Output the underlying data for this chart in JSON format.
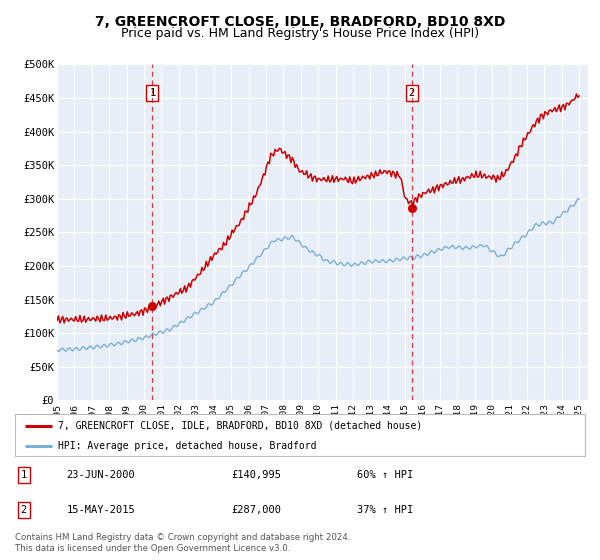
{
  "title": "7, GREENCROFT CLOSE, IDLE, BRADFORD, BD10 8XD",
  "subtitle": "Price paid vs. HM Land Registry's House Price Index (HPI)",
  "ylim": [
    0,
    500000
  ],
  "xlim_start": 1995.0,
  "xlim_end": 2025.5,
  "yticks": [
    0,
    50000,
    100000,
    150000,
    200000,
    250000,
    300000,
    350000,
    400000,
    450000,
    500000
  ],
  "ytick_labels": [
    "£0",
    "£50K",
    "£100K",
    "£150K",
    "£200K",
    "£250K",
    "£300K",
    "£350K",
    "£400K",
    "£450K",
    "£500K"
  ],
  "xtick_years": [
    1995,
    1996,
    1997,
    1998,
    1999,
    2000,
    2001,
    2002,
    2003,
    2004,
    2005,
    2006,
    2007,
    2008,
    2009,
    2010,
    2011,
    2012,
    2013,
    2014,
    2015,
    2016,
    2017,
    2018,
    2019,
    2020,
    2021,
    2022,
    2023,
    2024,
    2025
  ],
  "hpi_color": "#7bafd4",
  "property_color": "#cc0000",
  "background_color": "#e8eef8",
  "grid_color": "#ffffff",
  "marker1_date": 2000.48,
  "marker1_price": 140995,
  "marker1_label": "1",
  "marker2_date": 2015.37,
  "marker2_price": 287000,
  "marker2_label": "2",
  "legend_property": "7, GREENCROFT CLOSE, IDLE, BRADFORD, BD10 8XD (detached house)",
  "legend_hpi": "HPI: Average price, detached house, Bradford",
  "table_row1_num": "1",
  "table_row1_date": "23-JUN-2000",
  "table_row1_price": "£140,995",
  "table_row1_hpi": "60% ↑ HPI",
  "table_row2_num": "2",
  "table_row2_date": "15-MAY-2015",
  "table_row2_price": "£287,000",
  "table_row2_hpi": "37% ↑ HPI",
  "footer": "Contains HM Land Registry data © Crown copyright and database right 2024.\nThis data is licensed under the Open Government Licence v3.0.",
  "title_fontsize": 10,
  "subtitle_fontsize": 9
}
